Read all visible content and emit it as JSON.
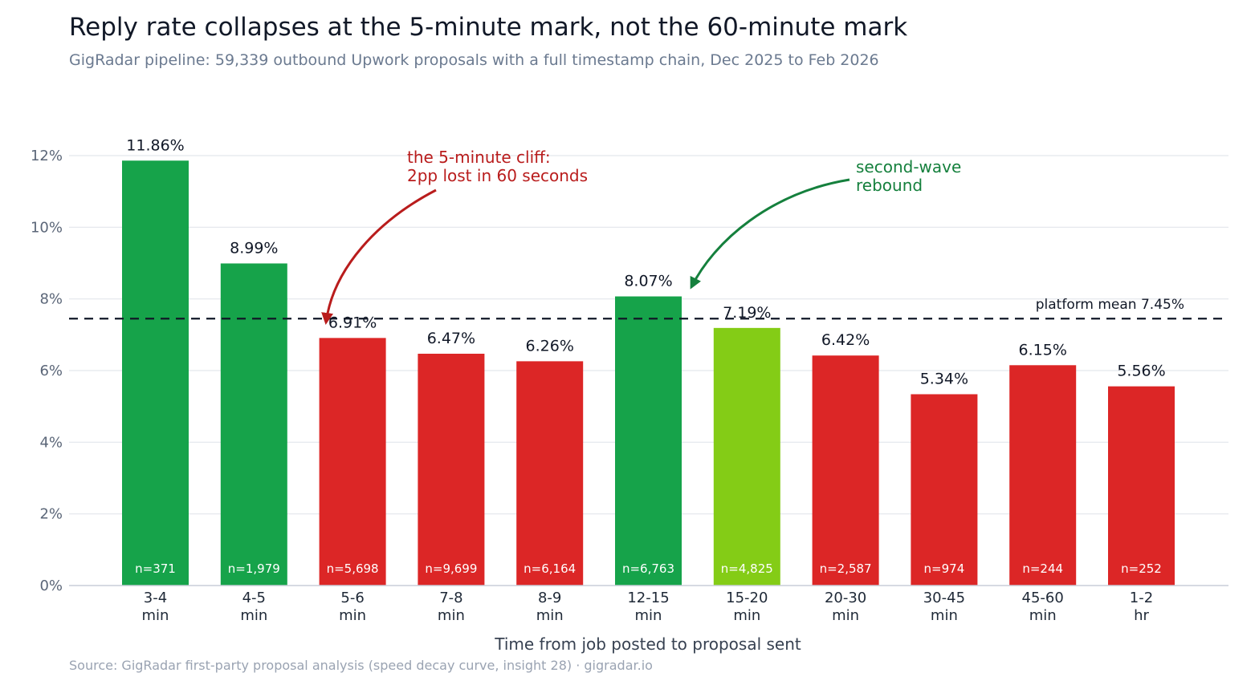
{
  "page": {
    "title": "Reply rate collapses at the 5-minute mark, not the 60-minute mark",
    "subtitle": "GigRadar pipeline: 59,339 outbound Upwork proposals with a full timestamp chain, Dec 2025 to Feb 2026",
    "footer": "Source: GigRadar first-party proposal analysis (speed decay curve, insight 28)  ·  gigradar.io"
  },
  "chart_data": {
    "type": "bar",
    "categories": [
      [
        "3-4",
        "min"
      ],
      [
        "4-5",
        "min"
      ],
      [
        "5-6",
        "min"
      ],
      [
        "7-8",
        "min"
      ],
      [
        "8-9",
        "min"
      ],
      [
        "12-15",
        "min"
      ],
      [
        "15-20",
        "min"
      ],
      [
        "20-30",
        "min"
      ],
      [
        "30-45",
        "min"
      ],
      [
        "45-60",
        "min"
      ],
      [
        "1-2",
        "hr"
      ]
    ],
    "values": [
      11.86,
      8.99,
      6.91,
      6.47,
      6.26,
      8.07,
      7.19,
      6.42,
      5.34,
      6.15,
      5.56
    ],
    "value_labels": [
      "11.86%",
      "8.99%",
      "6.91%",
      "6.47%",
      "6.26%",
      "8.07%",
      "7.19%",
      "6.42%",
      "5.34%",
      "6.15%",
      "5.56%"
    ],
    "n_labels": [
      "n=371",
      "n=1,979",
      "n=5,698",
      "n=9,699",
      "n=6,164",
      "n=6,763",
      "n=4,825",
      "n=2,587",
      "n=974",
      "n=244",
      "n=252"
    ],
    "colors": [
      "#16a34a",
      "#16a34a",
      "#dc2626",
      "#dc2626",
      "#dc2626",
      "#16a34a",
      "#84cc16",
      "#dc2626",
      "#dc2626",
      "#dc2626",
      "#dc2626"
    ],
    "xlabel": "Time from job posted to proposal sent",
    "ylabel": "",
    "ylim": [
      0,
      12
    ],
    "yticks": [
      0,
      2,
      4,
      6,
      8,
      10,
      12
    ],
    "ytick_labels": [
      "0%",
      "2%",
      "4%",
      "6%",
      "8%",
      "10%",
      "12%"
    ],
    "grid": true,
    "reference_line": {
      "value": 7.45,
      "label": "platform mean 7.45%",
      "style": "dashed",
      "color": "#111827"
    },
    "annotations": [
      {
        "lines": [
          "the 5-minute cliff:",
          "2pp lost in 60 seconds"
        ],
        "color": "#b91c1c",
        "target_category": 2
      },
      {
        "lines": [
          "second-wave",
          "rebound"
        ],
        "color": "#15803d",
        "target_category": 5
      }
    ]
  }
}
